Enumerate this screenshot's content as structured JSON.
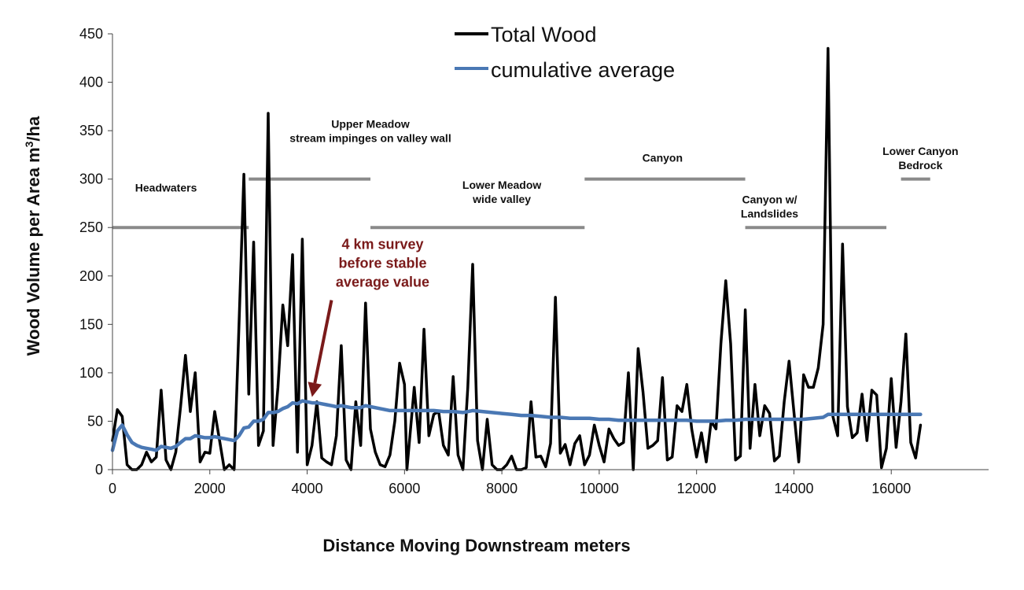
{
  "chart_data": {
    "type": "line",
    "title": "",
    "xlabel": "Distance Moving Downstream meters",
    "ylabel": "Wood Volume per Area  m",
    "ylabel_sup": "3",
    "ylabel_suffix": "/ha",
    "xlim": [
      0,
      18000
    ],
    "ylim": [
      0,
      450
    ],
    "xticks": [
      0,
      2000,
      4000,
      6000,
      8000,
      10000,
      12000,
      14000,
      16000
    ],
    "yticks": [
      0,
      50,
      100,
      150,
      200,
      250,
      300,
      350,
      400,
      450
    ],
    "grid": false,
    "legend": "top-center",
    "series": [
      {
        "name": "Total Wood",
        "color": "#000000",
        "points": [
          [
            0,
            30
          ],
          [
            100,
            62
          ],
          [
            200,
            55
          ],
          [
            300,
            5
          ],
          [
            400,
            0
          ],
          [
            500,
            0
          ],
          [
            600,
            5
          ],
          [
            700,
            18
          ],
          [
            800,
            8
          ],
          [
            900,
            13
          ],
          [
            1000,
            82
          ],
          [
            1100,
            10
          ],
          [
            1200,
            0
          ],
          [
            1300,
            18
          ],
          [
            1400,
            65
          ],
          [
            1500,
            118
          ],
          [
            1600,
            60
          ],
          [
            1700,
            100
          ],
          [
            1800,
            8
          ],
          [
            1900,
            18
          ],
          [
            2000,
            17
          ],
          [
            2100,
            60
          ],
          [
            2200,
            30
          ],
          [
            2300,
            0
          ],
          [
            2400,
            5
          ],
          [
            2500,
            0
          ],
          [
            2600,
            150
          ],
          [
            2700,
            305
          ],
          [
            2800,
            78
          ],
          [
            2900,
            235
          ],
          [
            3000,
            25
          ],
          [
            3100,
            40
          ],
          [
            3200,
            368
          ],
          [
            3300,
            25
          ],
          [
            3400,
            85
          ],
          [
            3500,
            170
          ],
          [
            3600,
            128
          ],
          [
            3700,
            222
          ],
          [
            3800,
            18
          ],
          [
            3900,
            238
          ],
          [
            4000,
            5
          ],
          [
            4100,
            25
          ],
          [
            4200,
            70
          ],
          [
            4300,
            12
          ],
          [
            4400,
            8
          ],
          [
            4500,
            5
          ],
          [
            4600,
            35
          ],
          [
            4700,
            128
          ],
          [
            4800,
            10
          ],
          [
            4900,
            0
          ],
          [
            5000,
            70
          ],
          [
            5100,
            25
          ],
          [
            5200,
            172
          ],
          [
            5300,
            42
          ],
          [
            5400,
            18
          ],
          [
            5500,
            5
          ],
          [
            5600,
            3
          ],
          [
            5700,
            15
          ],
          [
            5800,
            50
          ],
          [
            5900,
            110
          ],
          [
            6000,
            88
          ],
          [
            6050,
            0
          ],
          [
            6200,
            85
          ],
          [
            6300,
            28
          ],
          [
            6400,
            145
          ],
          [
            6500,
            35
          ],
          [
            6600,
            57
          ],
          [
            6700,
            60
          ],
          [
            6800,
            25
          ],
          [
            6900,
            15
          ],
          [
            7000,
            96
          ],
          [
            7100,
            15
          ],
          [
            7200,
            0
          ],
          [
            7300,
            85
          ],
          [
            7400,
            212
          ],
          [
            7500,
            30
          ],
          [
            7600,
            0
          ],
          [
            7700,
            52
          ],
          [
            7800,
            5
          ],
          [
            7900,
            0
          ],
          [
            8000,
            0
          ],
          [
            8100,
            5
          ],
          [
            8200,
            14
          ],
          [
            8300,
            0
          ],
          [
            8400,
            0
          ],
          [
            8500,
            2
          ],
          [
            8600,
            70
          ],
          [
            8700,
            13
          ],
          [
            8800,
            14
          ],
          [
            8900,
            3
          ],
          [
            9000,
            27
          ],
          [
            9100,
            178
          ],
          [
            9200,
            17
          ],
          [
            9300,
            26
          ],
          [
            9400,
            5
          ],
          [
            9500,
            27
          ],
          [
            9600,
            35
          ],
          [
            9700,
            5
          ],
          [
            9800,
            15
          ],
          [
            9900,
            46
          ],
          [
            10000,
            25
          ],
          [
            10100,
            8
          ],
          [
            10200,
            42
          ],
          [
            10300,
            32
          ],
          [
            10400,
            25
          ],
          [
            10500,
            28
          ],
          [
            10600,
            100
          ],
          [
            10700,
            0
          ],
          [
            10800,
            125
          ],
          [
            10900,
            80
          ],
          [
            11000,
            22
          ],
          [
            11100,
            25
          ],
          [
            11200,
            30
          ],
          [
            11300,
            95
          ],
          [
            11400,
            10
          ],
          [
            11500,
            13
          ],
          [
            11600,
            66
          ],
          [
            11700,
            60
          ],
          [
            11800,
            88
          ],
          [
            11900,
            42
          ],
          [
            12000,
            13
          ],
          [
            12100,
            38
          ],
          [
            12200,
            8
          ],
          [
            12300,
            50
          ],
          [
            12400,
            42
          ],
          [
            12500,
            130
          ],
          [
            12600,
            195
          ],
          [
            12700,
            130
          ],
          [
            12800,
            10
          ],
          [
            12900,
            14
          ],
          [
            13000,
            165
          ],
          [
            13100,
            22
          ],
          [
            13200,
            88
          ],
          [
            13300,
            35
          ],
          [
            13400,
            66
          ],
          [
            13500,
            58
          ],
          [
            13600,
            9
          ],
          [
            13700,
            14
          ],
          [
            13800,
            70
          ],
          [
            13900,
            112
          ],
          [
            14000,
            60
          ],
          [
            14100,
            8
          ],
          [
            14200,
            98
          ],
          [
            14300,
            85
          ],
          [
            14400,
            85
          ],
          [
            14500,
            105
          ],
          [
            14600,
            150
          ],
          [
            14700,
            435
          ],
          [
            14800,
            55
          ],
          [
            14900,
            35
          ],
          [
            15000,
            233
          ],
          [
            15100,
            65
          ],
          [
            15200,
            33
          ],
          [
            15300,
            38
          ],
          [
            15400,
            78
          ],
          [
            15500,
            30
          ],
          [
            15600,
            82
          ],
          [
            15700,
            77
          ],
          [
            15800,
            2
          ],
          [
            15900,
            22
          ],
          [
            16000,
            94
          ],
          [
            16100,
            23
          ],
          [
            16200,
            70
          ],
          [
            16300,
            140
          ],
          [
            16400,
            28
          ],
          [
            16500,
            12
          ],
          [
            16600,
            46
          ]
        ]
      },
      {
        "name": "cumulative average",
        "color": "#4a78b4",
        "points": [
          [
            0,
            20
          ],
          [
            100,
            40
          ],
          [
            200,
            46
          ],
          [
            300,
            36
          ],
          [
            400,
            28
          ],
          [
            500,
            25
          ],
          [
            600,
            23
          ],
          [
            700,
            22
          ],
          [
            800,
            21
          ],
          [
            900,
            20
          ],
          [
            1000,
            24
          ],
          [
            1100,
            23
          ],
          [
            1200,
            22
          ],
          [
            1300,
            24
          ],
          [
            1400,
            28
          ],
          [
            1500,
            32
          ],
          [
            1600,
            32
          ],
          [
            1700,
            35
          ],
          [
            1800,
            34
          ],
          [
            1900,
            33
          ],
          [
            2000,
            33
          ],
          [
            2100,
            34
          ],
          [
            2200,
            33
          ],
          [
            2300,
            32
          ],
          [
            2400,
            31
          ],
          [
            2500,
            30
          ],
          [
            2600,
            35
          ],
          [
            2700,
            43
          ],
          [
            2800,
            44
          ],
          [
            2900,
            50
          ],
          [
            3000,
            50
          ],
          [
            3100,
            52
          ],
          [
            3200,
            59
          ],
          [
            3300,
            59
          ],
          [
            3400,
            60
          ],
          [
            3500,
            63
          ],
          [
            3600,
            65
          ],
          [
            3700,
            69
          ],
          [
            3800,
            68
          ],
          [
            3900,
            71
          ],
          [
            4000,
            70
          ],
          [
            4100,
            69
          ],
          [
            4200,
            69
          ],
          [
            4300,
            68
          ],
          [
            4400,
            67
          ],
          [
            4500,
            66
          ],
          [
            4600,
            65
          ],
          [
            4700,
            66
          ],
          [
            4800,
            65
          ],
          [
            4900,
            64
          ],
          [
            5000,
            64
          ],
          [
            5100,
            64
          ],
          [
            5200,
            66
          ],
          [
            5300,
            65
          ],
          [
            5400,
            64
          ],
          [
            5500,
            63
          ],
          [
            5600,
            62
          ],
          [
            5700,
            61
          ],
          [
            5800,
            61
          ],
          [
            5900,
            61
          ],
          [
            6000,
            61
          ],
          [
            6200,
            61
          ],
          [
            6400,
            61
          ],
          [
            6600,
            61
          ],
          [
            6800,
            60
          ],
          [
            7000,
            60
          ],
          [
            7200,
            59
          ],
          [
            7400,
            61
          ],
          [
            7600,
            60
          ],
          [
            7800,
            59
          ],
          [
            8000,
            58
          ],
          [
            8200,
            57
          ],
          [
            8400,
            56
          ],
          [
            8600,
            56
          ],
          [
            8800,
            55
          ],
          [
            9000,
            54
          ],
          [
            9200,
            54
          ],
          [
            9400,
            53
          ],
          [
            9600,
            53
          ],
          [
            9800,
            53
          ],
          [
            10000,
            52
          ],
          [
            10200,
            52
          ],
          [
            10400,
            51
          ],
          [
            10600,
            51
          ],
          [
            10800,
            51
          ],
          [
            11000,
            51
          ],
          [
            11200,
            51
          ],
          [
            11400,
            51
          ],
          [
            11600,
            51
          ],
          [
            11800,
            51
          ],
          [
            12000,
            50
          ],
          [
            12200,
            50
          ],
          [
            12400,
            50
          ],
          [
            12600,
            51
          ],
          [
            12800,
            51
          ],
          [
            13000,
            52
          ],
          [
            13200,
            52
          ],
          [
            13400,
            52
          ],
          [
            13600,
            52
          ],
          [
            13800,
            52
          ],
          [
            14000,
            52
          ],
          [
            14200,
            52
          ],
          [
            14400,
            53
          ],
          [
            14600,
            54
          ],
          [
            14700,
            57
          ],
          [
            14800,
            57
          ],
          [
            15000,
            57
          ],
          [
            15200,
            57
          ],
          [
            15400,
            57
          ],
          [
            15600,
            57
          ],
          [
            15800,
            57
          ],
          [
            16000,
            57
          ],
          [
            16200,
            57
          ],
          [
            16400,
            57
          ],
          [
            16600,
            57
          ]
        ]
      }
    ],
    "segments": [
      {
        "label": "Headwaters",
        "label2": "",
        "x0": 0,
        "x1": 2800,
        "y": 250,
        "label_x": 1100,
        "label_y": 287
      },
      {
        "label": "Upper Meadow",
        "label2": "stream impinges on valley wall",
        "x0": 2800,
        "x1": 5300,
        "y": 300,
        "label_x": 5300,
        "label_y": 353
      },
      {
        "label": "Lower Meadow",
        "label2": "wide valley",
        "x0": 5300,
        "x1": 9700,
        "y": 250,
        "label_x": 8000,
        "label_y": 290
      },
      {
        "label": "Canyon",
        "label2": "",
        "x0": 9700,
        "x1": 13000,
        "y": 300,
        "label_x": 11300,
        "label_y": 318
      },
      {
        "label": "Canyon w/",
        "label2": "Landslides",
        "x0": 13000,
        "x1": 15900,
        "y": 250,
        "label_x": 13500,
        "label_y": 275
      },
      {
        "label": "Lower Canyon",
        "label2": "Bedrock",
        "x0": 16200,
        "x1": 16800,
        "y": 300,
        "label_x": 16600,
        "label_y": 325
      }
    ],
    "segment_color": "#8a8a8a",
    "annotation": {
      "lines": [
        "4 km survey",
        "before stable",
        "average value"
      ],
      "color": "#7a1a1a",
      "text_x": 5550,
      "text_y": 228,
      "arrow_from": [
        4500,
        175
      ],
      "arrow_to": [
        4100,
        75
      ]
    }
  }
}
